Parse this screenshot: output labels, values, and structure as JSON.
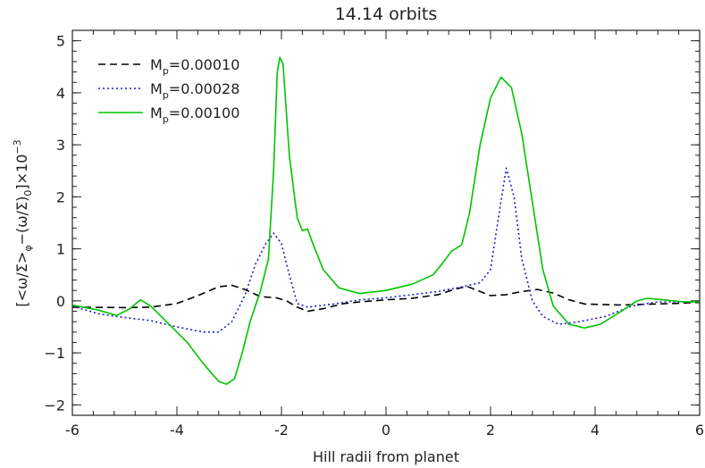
{
  "chart_data": {
    "type": "line",
    "title": "14.14 orbits",
    "xlabel": "Hill radii from planet",
    "ylabel_parts": {
      "open": "[<ω/Σ>",
      "sub1": "φ",
      "mid": "−(ω/Σ)",
      "sub2": "0",
      "close": "]×10",
      "exp": "−3"
    },
    "xlim": [
      -6,
      6
    ],
    "ylim": [
      -2.2,
      5.2
    ],
    "xticks": [
      -6,
      -4,
      -2,
      0,
      2,
      4,
      6
    ],
    "yticks": [
      -2,
      -1,
      0,
      1,
      2,
      3,
      4,
      5
    ],
    "grid": false,
    "legend_position": "top-left",
    "series": [
      {
        "name": "M_p=0.00010",
        "label_base": "M",
        "label_sub": "p",
        "label_value": "=0.00010",
        "color": "#000000",
        "dash": "8,5",
        "points": [
          [
            -6,
            -0.12
          ],
          [
            -5,
            -0.13
          ],
          [
            -4.5,
            -0.12
          ],
          [
            -4,
            -0.05
          ],
          [
            -3.6,
            0.1
          ],
          [
            -3.2,
            0.27
          ],
          [
            -2.95,
            0.3
          ],
          [
            -2.7,
            0.22
          ],
          [
            -2.4,
            0.08
          ],
          [
            -2.1,
            0.06
          ],
          [
            -1.9,
            0.0
          ],
          [
            -1.7,
            -0.12
          ],
          [
            -1.5,
            -0.2
          ],
          [
            -1.2,
            -0.15
          ],
          [
            -0.8,
            -0.05
          ],
          [
            -0.5,
            -0.02
          ],
          [
            0,
            0.02
          ],
          [
            0.5,
            0.05
          ],
          [
            1.0,
            0.12
          ],
          [
            1.3,
            0.22
          ],
          [
            1.55,
            0.28
          ],
          [
            1.8,
            0.18
          ],
          [
            2.0,
            0.1
          ],
          [
            2.3,
            0.12
          ],
          [
            2.6,
            0.18
          ],
          [
            2.9,
            0.22
          ],
          [
            3.2,
            0.15
          ],
          [
            3.5,
            0.02
          ],
          [
            3.8,
            -0.06
          ],
          [
            4.5,
            -0.08
          ],
          [
            5.5,
            -0.05
          ],
          [
            6,
            -0.03
          ]
        ]
      },
      {
        "name": "M_p=0.00028",
        "label_base": "M",
        "label_sub": "p",
        "label_value": "=0.00028",
        "color": "#1a1acc",
        "dash": "2,3",
        "points": [
          [
            -6,
            -0.1
          ],
          [
            -5.5,
            -0.25
          ],
          [
            -5,
            -0.32
          ],
          [
            -4.5,
            -0.38
          ],
          [
            -4,
            -0.5
          ],
          [
            -3.5,
            -0.6
          ],
          [
            -3.2,
            -0.6
          ],
          [
            -2.95,
            -0.4
          ],
          [
            -2.7,
            0.1
          ],
          [
            -2.5,
            0.7
          ],
          [
            -2.3,
            1.1
          ],
          [
            -2.15,
            1.3
          ],
          [
            -2.0,
            1.1
          ],
          [
            -1.85,
            0.5
          ],
          [
            -1.7,
            -0.05
          ],
          [
            -1.5,
            -0.12
          ],
          [
            -1.0,
            -0.06
          ],
          [
            -0.5,
            0.02
          ],
          [
            0,
            0.06
          ],
          [
            0.5,
            0.12
          ],
          [
            1.0,
            0.18
          ],
          [
            1.5,
            0.28
          ],
          [
            1.8,
            0.35
          ],
          [
            2.0,
            0.6
          ],
          [
            2.15,
            1.6
          ],
          [
            2.3,
            2.55
          ],
          [
            2.45,
            2.0
          ],
          [
            2.6,
            0.8
          ],
          [
            2.8,
            0.0
          ],
          [
            3.0,
            -0.3
          ],
          [
            3.3,
            -0.45
          ],
          [
            3.7,
            -0.4
          ],
          [
            4.2,
            -0.3
          ],
          [
            4.7,
            -0.1
          ],
          [
            5.2,
            -0.02
          ],
          [
            6,
            -0.02
          ]
        ]
      },
      {
        "name": "M_p=0.00100",
        "label_base": "M",
        "label_sub": "p",
        "label_value": "=0.00100",
        "color": "#00c400",
        "dash": "",
        "points": [
          [
            -6,
            -0.08
          ],
          [
            -5.5,
            -0.18
          ],
          [
            -5.15,
            -0.28
          ],
          [
            -4.9,
            -0.15
          ],
          [
            -4.7,
            0.02
          ],
          [
            -4.5,
            -0.1
          ],
          [
            -4.2,
            -0.4
          ],
          [
            -3.8,
            -0.8
          ],
          [
            -3.5,
            -1.2
          ],
          [
            -3.2,
            -1.55
          ],
          [
            -3.05,
            -1.6
          ],
          [
            -2.9,
            -1.5
          ],
          [
            -2.75,
            -1.0
          ],
          [
            -2.6,
            -0.4
          ],
          [
            -2.4,
            0.2
          ],
          [
            -2.25,
            0.8
          ],
          [
            -2.15,
            2.5
          ],
          [
            -2.08,
            4.4
          ],
          [
            -2.03,
            4.68
          ],
          [
            -1.97,
            4.55
          ],
          [
            -1.85,
            2.8
          ],
          [
            -1.7,
            1.6
          ],
          [
            -1.6,
            1.35
          ],
          [
            -1.5,
            1.38
          ],
          [
            -1.4,
            1.1
          ],
          [
            -1.2,
            0.6
          ],
          [
            -0.9,
            0.25
          ],
          [
            -0.5,
            0.14
          ],
          [
            0,
            0.2
          ],
          [
            0.5,
            0.32
          ],
          [
            0.9,
            0.5
          ],
          [
            1.1,
            0.75
          ],
          [
            1.25,
            0.95
          ],
          [
            1.45,
            1.08
          ],
          [
            1.6,
            1.7
          ],
          [
            1.8,
            3.0
          ],
          [
            2.0,
            3.9
          ],
          [
            2.2,
            4.3
          ],
          [
            2.4,
            4.1
          ],
          [
            2.6,
            3.2
          ],
          [
            2.8,
            1.9
          ],
          [
            3.0,
            0.6
          ],
          [
            3.2,
            -0.1
          ],
          [
            3.5,
            -0.45
          ],
          [
            3.8,
            -0.52
          ],
          [
            4.1,
            -0.45
          ],
          [
            4.5,
            -0.2
          ],
          [
            4.8,
            0.0
          ],
          [
            5.0,
            0.05
          ],
          [
            5.3,
            0.02
          ],
          [
            5.7,
            -0.02
          ],
          [
            6,
            -0.02
          ]
        ]
      }
    ]
  }
}
